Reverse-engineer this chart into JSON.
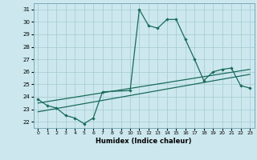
{
  "xlabel": "Humidex (Indice chaleur)",
  "bg_color": "#cce8ee",
  "grid_color": "#aacdd6",
  "line_color": "#1a6b5a",
  "xlim": [
    -0.5,
    23.5
  ],
  "ylim": [
    21.5,
    31.5
  ],
  "xticks": [
    0,
    1,
    2,
    3,
    4,
    5,
    6,
    7,
    8,
    9,
    10,
    11,
    12,
    13,
    14,
    15,
    16,
    17,
    18,
    19,
    20,
    21,
    22,
    23
  ],
  "yticks": [
    22,
    23,
    24,
    25,
    26,
    27,
    28,
    29,
    30,
    31
  ],
  "line1_x": [
    0,
    1,
    2,
    3,
    4,
    5,
    6,
    7,
    10,
    11,
    12,
    13,
    14,
    15,
    16,
    17,
    18,
    19,
    20,
    21,
    22,
    23
  ],
  "line1_y": [
    23.8,
    23.3,
    23.1,
    22.5,
    22.3,
    21.85,
    22.3,
    24.4,
    24.5,
    31.0,
    29.7,
    29.5,
    30.2,
    30.2,
    28.6,
    27.0,
    25.3,
    26.0,
    26.2,
    26.3,
    24.9,
    24.7
  ],
  "line2_x": [
    0,
    23
  ],
  "line2_y": [
    22.8,
    25.8
  ],
  "line3_x": [
    0,
    23
  ],
  "line3_y": [
    23.5,
    26.2
  ]
}
